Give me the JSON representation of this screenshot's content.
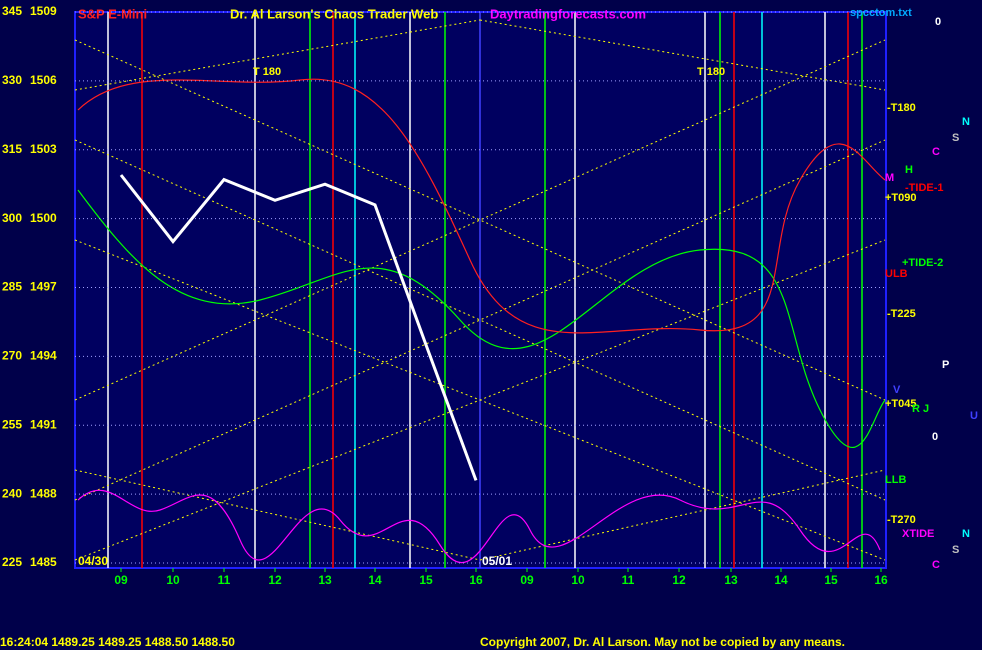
{
  "chart_data": {
    "type": "line",
    "header": {
      "left": "S&P E-Mini",
      "center": "Dr. Al Larson's Chaos Trader Web",
      "site": "Daytradingforecasts.com",
      "file": "spcctom.txt"
    },
    "categories": [
      "09",
      "10",
      "11",
      "12",
      "13",
      "14",
      "15",
      "16",
      "09",
      "10",
      "11",
      "12",
      "13",
      "14",
      "15",
      "16"
    ],
    "date_labels": [
      "04/30",
      "05/01"
    ],
    "series": [
      {
        "name": "S&P E-Mini",
        "color": "#ffffff",
        "values": [
          1501.9,
          1499,
          1501.7,
          1500.8,
          1501.5,
          1500.6,
          1494.5,
          1488.6,
          null,
          null,
          null,
          null,
          null,
          null,
          null,
          null
        ]
      }
    ],
    "ylim": [
      1485,
      1509
    ],
    "yticks": [
      1485,
      1488,
      1491,
      1494,
      1497,
      1500,
      1503,
      1506,
      1509
    ],
    "y2lim": [
      225,
      345
    ],
    "y2ticks": [
      225,
      240,
      255,
      270,
      285,
      300,
      315,
      330,
      345
    ],
    "grid": true,
    "annotations": [
      {
        "text": "T 180",
        "color": "#ffff00"
      },
      {
        "text": "T 180",
        "color": "#ffff00"
      },
      {
        "text": "0",
        "color": "#ffffff"
      },
      {
        "text": "-T180",
        "color": "#ffff00"
      },
      {
        "text": "N",
        "color": "#00ffff"
      },
      {
        "text": "S",
        "color": "#c0c0c0"
      },
      {
        "text": "C",
        "color": "#ff00ff"
      },
      {
        "text": "H",
        "color": "#00ff00"
      },
      {
        "text": "M",
        "color": "#ff00ff"
      },
      {
        "text": "-TIDE-1",
        "color": "#ff0000"
      },
      {
        "text": "+T090",
        "color": "#ffff00"
      },
      {
        "text": "+TIDE-2",
        "color": "#00ff00"
      },
      {
        "text": "ULB",
        "color": "#ff0000"
      },
      {
        "text": "-T225",
        "color": "#ffff00"
      },
      {
        "text": "P",
        "color": "#ffffff"
      },
      {
        "text": "V",
        "color": "#4040ff"
      },
      {
        "text": "+T045",
        "color": "#ffff00"
      },
      {
        "text": "R J",
        "color": "#00ff00"
      },
      {
        "text": "U",
        "color": "#4040ff"
      },
      {
        "text": "0",
        "color": "#ffffff"
      },
      {
        "text": "LLB",
        "color": "#00ff00"
      },
      {
        "text": "-T270",
        "color": "#ffff00"
      },
      {
        "text": "XTIDE",
        "color": "#ff00ff"
      },
      {
        "text": "N",
        "color": "#00ffff"
      },
      {
        "text": "S",
        "color": "#c0c0c0"
      },
      {
        "text": "C",
        "color": "#ff00ff"
      }
    ],
    "status": "16:24:04  1489.25 1489.25 1488.50 1488.50",
    "copyright": "Copyright 2007, Dr. Al Larson. May not be copied by any means."
  }
}
